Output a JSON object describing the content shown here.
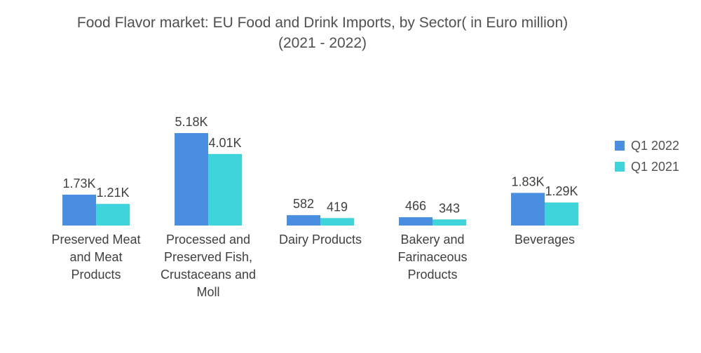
{
  "title": {
    "line1": "Food Flavor market: EU Food and Drink Imports, by Sector( in Euro million)",
    "line2": "(2021 - 2022)"
  },
  "colors": {
    "Q1 2022": "#4a8ee2",
    "Q1 2021": "#3fd3dc"
  },
  "chart_data": {
    "type": "bar",
    "title": "Food Flavor market: EU Food and Drink Imports, by Sector( in Euro million) (2021 - 2022)",
    "categories": [
      "Preserved Meat and Meat Products",
      "Processed and Preserved Fish, Crustaceans and Moll",
      "Dairy Products",
      "Bakery and Farinaceous Products",
      "Beverages"
    ],
    "series": [
      {
        "name": "Q1 2022",
        "values": [
          1730,
          5180,
          582,
          466,
          1830
        ],
        "labels": [
          "1.73K",
          "5.18K",
          "582",
          "466",
          "1.83K"
        ]
      },
      {
        "name": "Q1 2021",
        "values": [
          1210,
          4010,
          419,
          343,
          1290
        ],
        "labels": [
          "1.21K",
          "4.01K",
          "419",
          "343",
          "1.29K"
        ]
      }
    ],
    "xlabel": "",
    "ylabel": "",
    "ylim": [
      0,
      5180
    ],
    "grid": false,
    "legend": "right"
  }
}
